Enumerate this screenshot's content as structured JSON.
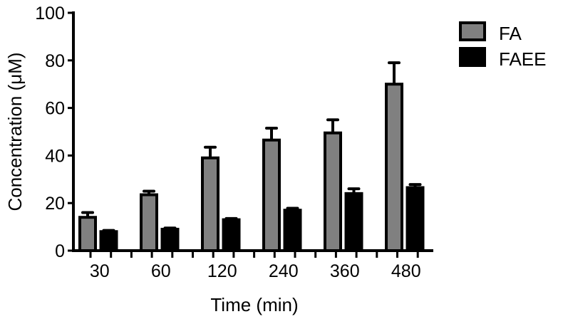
{
  "chart_data": {
    "type": "bar",
    "title": "",
    "xlabel": "Time (min)",
    "ylabel": "Concentration (μM)",
    "ylim": [
      0,
      100
    ],
    "yticks": [
      0,
      20,
      40,
      60,
      80,
      100
    ],
    "grid": false,
    "legend_position": "top-right",
    "categories": [
      "30",
      "60",
      "120",
      "240",
      "360",
      "480"
    ],
    "series": [
      {
        "name": "FA",
        "color": "#808080",
        "border": "#000000",
        "values": [
          14,
          23.5,
          39,
          46.5,
          49.5,
          70
        ],
        "errors": [
          2,
          1.5,
          4.5,
          5,
          5.5,
          9
        ]
      },
      {
        "name": "FAEE",
        "color": "#000000",
        "border": "#000000",
        "values": [
          8,
          9,
          13,
          17,
          24,
          26.5
        ],
        "errors": [
          0.5,
          0.5,
          0.5,
          0.8,
          2,
          1.3
        ]
      }
    ]
  },
  "legend": {
    "items": [
      {
        "label": "FA",
        "color": "#808080"
      },
      {
        "label": "FAEE",
        "color": "#000000"
      }
    ]
  }
}
